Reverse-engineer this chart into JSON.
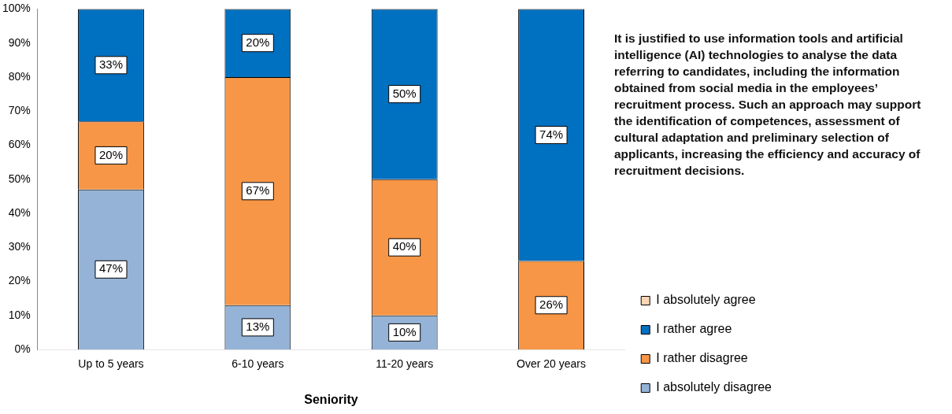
{
  "chart_data": {
    "type": "bar",
    "stacked": true,
    "xlabel": "Seniority",
    "categories": [
      "Up to 5 years",
      "6-10 years",
      "11-20 years",
      "Over 20 years"
    ],
    "series": [
      {
        "name": "I absolutely disagree",
        "color": "#95b3d7",
        "values": [
          47,
          13,
          10,
          0
        ],
        "value_labels": [
          "47%",
          "13%",
          "10%",
          null
        ]
      },
      {
        "name": "I rather disagree",
        "color": "#f79646",
        "values": [
          20,
          67,
          40,
          26
        ],
        "value_labels": [
          "20%",
          "67%",
          "40%",
          "26%"
        ]
      },
      {
        "name": "I rather agree",
        "color": "#0070c0",
        "values": [
          33,
          20,
          50,
          74
        ],
        "value_labels": [
          "33%",
          "20%",
          "50%",
          "74%"
        ]
      },
      {
        "name": "I absolutely agree",
        "color": "#fcd5b5",
        "values": [
          0,
          0,
          0,
          0
        ],
        "value_labels": [
          null,
          null,
          null,
          null
        ]
      }
    ],
    "ylim": [
      0,
      100
    ],
    "yticks": [
      {
        "value": 0,
        "label": "0%"
      },
      {
        "value": 10,
        "label": "10%"
      },
      {
        "value": 20,
        "label": "20%"
      },
      {
        "value": 30,
        "label": "30%"
      },
      {
        "value": 40,
        "label": "40%"
      },
      {
        "value": 50,
        "label": "50%"
      },
      {
        "value": 60,
        "label": "60%"
      },
      {
        "value": 70,
        "label": "70%"
      },
      {
        "value": 80,
        "label": "80%"
      },
      {
        "value": 90,
        "label": "90%"
      },
      {
        "value": 100,
        "label": "100%"
      }
    ],
    "legend": "right",
    "annotations": [
      "It is justified to use information tools and artificial intelligence (AI) technologies to analyse the data referring to candidates, including the information obtained from social media in the employees’ recruitment process. Such an approach may support the identification of competences, assessment of cultural adaptation and preliminary selection of applicants, increasing the efficiency and accuracy of recruitment decisions."
    ]
  }
}
